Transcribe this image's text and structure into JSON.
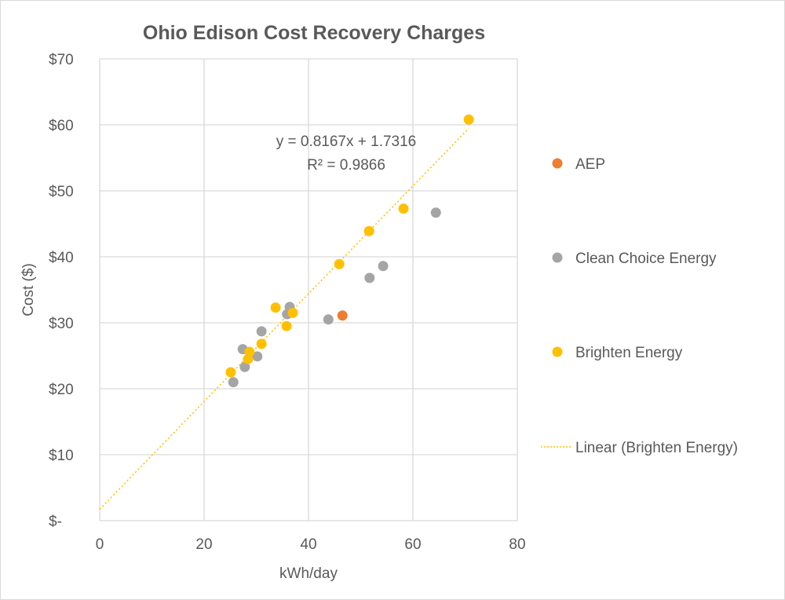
{
  "chart_data": {
    "type": "scatter",
    "title": "Ohio Edison Cost Recovery Charges",
    "xlabel": "kWh/day",
    "ylabel": "Cost ($)",
    "xlim": [
      0,
      80
    ],
    "ylim": [
      0,
      70
    ],
    "x_ticks": [
      "0",
      "20",
      "40",
      "60",
      "80"
    ],
    "y_ticks": [
      "$-",
      "$10",
      "$20",
      "$30",
      "$40",
      "$50",
      "$60",
      "$70"
    ],
    "grid": true,
    "legend_position": "right",
    "series": [
      {
        "name": "AEP",
        "color": "#ED7D31",
        "points": [
          [
            46.5,
            31.1
          ]
        ]
      },
      {
        "name": "Clean Choice Energy",
        "color": "#A5A5A5",
        "points": [
          [
            25.6,
            21.0
          ],
          [
            27.8,
            23.3
          ],
          [
            27.4,
            26.0
          ],
          [
            30.2,
            24.9
          ],
          [
            31.0,
            28.7
          ],
          [
            36.4,
            32.4
          ],
          [
            35.9,
            31.3
          ],
          [
            43.8,
            30.5
          ],
          [
            51.7,
            36.8
          ],
          [
            54.3,
            38.6
          ],
          [
            64.4,
            46.7
          ]
        ]
      },
      {
        "name": "Brighten Energy",
        "color": "#FFC000",
        "points": [
          [
            25.1,
            22.5
          ],
          [
            28.7,
            25.6
          ],
          [
            28.4,
            24.5
          ],
          [
            31.0,
            26.8
          ],
          [
            33.7,
            32.3
          ],
          [
            37.0,
            31.5
          ],
          [
            35.8,
            29.5
          ],
          [
            45.9,
            38.9
          ],
          [
            51.6,
            43.9
          ],
          [
            58.2,
            47.3
          ],
          [
            70.7,
            60.8
          ]
        ]
      }
    ],
    "trendline": {
      "name": "Linear (Brighten Energy)",
      "series": "Brighten Energy",
      "slope": 0.8167,
      "intercept": 1.7316,
      "x_range": [
        0,
        70.7
      ],
      "equation_label": "y = 0.8167x + 1.7316",
      "r2_label": "R² = 0.9866",
      "color": "#FFC000"
    }
  }
}
